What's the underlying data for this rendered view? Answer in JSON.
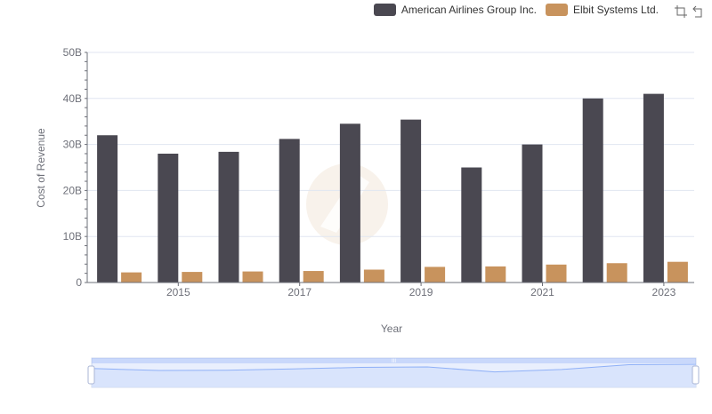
{
  "legend": [
    {
      "name": "American Airlines Group Inc.",
      "color": "#4a4851"
    },
    {
      "name": "Elbit Systems Ltd.",
      "color": "#c8935d"
    }
  ],
  "toolbox": {
    "zoom_icon": "zoom-select-icon",
    "reset_icon": "zoom-reset-icon"
  },
  "zoom_slider": {
    "start": 0,
    "end": 1,
    "handle_label": "III"
  },
  "chart_data": {
    "type": "bar",
    "xlabel": "Year",
    "ylabel": "Cost of Revenue",
    "ylim": [
      0,
      50
    ],
    "y_ticks": [
      "0",
      "10B",
      "20B",
      "30B",
      "40B",
      "50B"
    ],
    "categories": [
      "2014",
      "2015",
      "2016",
      "2017",
      "2018",
      "2019",
      "2020",
      "2021",
      "2022",
      "2023"
    ],
    "x_tick_labels": [
      "2015",
      "2017",
      "2019",
      "2021",
      "2023"
    ],
    "grid": true,
    "legend_position": "top-right",
    "series": [
      {
        "name": "American Airlines Group Inc.",
        "color": "#4a4851",
        "values": [
          32.0,
          28.0,
          28.4,
          31.2,
          34.5,
          35.4,
          25.0,
          30.0,
          40.0,
          41.0
        ]
      },
      {
        "name": "Elbit Systems Ltd.",
        "color": "#c8935d",
        "values": [
          2.2,
          2.3,
          2.4,
          2.5,
          2.8,
          3.4,
          3.5,
          3.9,
          4.2,
          4.5
        ]
      }
    ]
  }
}
